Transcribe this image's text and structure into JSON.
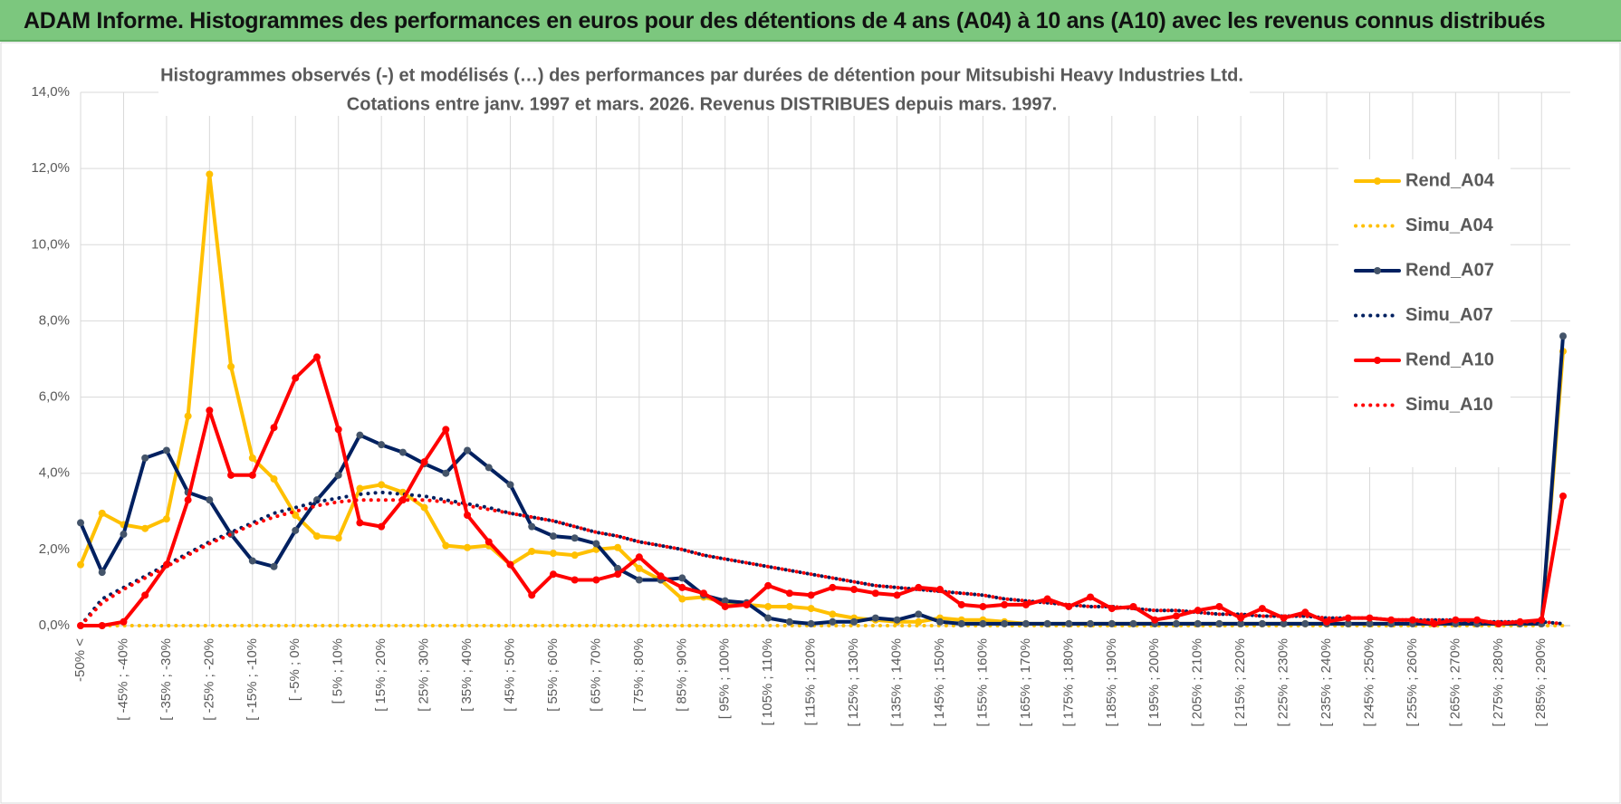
{
  "header": {
    "title": "ADAM Informe. Histogrammes des performances en euros pour des détentions de 4 ans (A04) à 10 ans (A10) avec les revenus connus distribués"
  },
  "chart_data": {
    "type": "line",
    "title": "Histogrammes observés (-) et modélisés (…) des performances par durées de détention pour Mitsubishi Heavy Industries Ltd.",
    "subtitle": "Cotations entre janv. 1997 et mars. 2026.  Revenus DISTRIBUES depuis mars. 1997.",
    "categories": [
      "-50% <",
      null,
      "[ -45% ; -40%",
      null,
      "[ -35% ; -30%",
      null,
      "[ -25% ; -20%",
      null,
      "[ -15% ; -10%",
      null,
      "[ -5% ; 0%",
      null,
      "[ 5% ; 10%",
      null,
      "[ 15% ; 20%",
      null,
      "[ 25% ; 30%",
      null,
      "[ 35% ; 40%",
      null,
      "[ 45% ; 50%",
      null,
      "[ 55% ; 60%",
      null,
      "[ 65% ; 70%",
      null,
      "[ 75% ; 80%",
      null,
      "[ 85% ; 90%",
      null,
      "[ 95% ; 100%",
      null,
      "[ 105% ; 110%",
      null,
      "[ 115% ; 120%",
      null,
      "[ 125% ; 130%",
      null,
      "[ 135% ; 140%",
      null,
      "[ 145% ; 150%",
      null,
      "[ 155% ; 160%",
      null,
      "[ 165% ; 170%",
      null,
      "[ 175% ; 180%",
      null,
      "[ 185% ; 190%",
      null,
      "[ 195% ; 200%",
      null,
      "[ 205% ; 210%",
      null,
      "[ 215% ; 220%",
      null,
      "[ 225% ; 230%",
      null,
      "[ 235% ; 240%",
      null,
      "[ 245% ; 250%",
      null,
      "[ 255% ; 260%",
      null,
      "[ 265% ; 270%",
      null,
      "[ 275% ; 280%",
      null,
      "[ 285% ; 290%",
      null
    ],
    "series": [
      {
        "name": "Rend_A04",
        "color": "#ffc000",
        "style": "solid",
        "markers": true,
        "values": [
          1.6,
          2.95,
          2.65,
          2.55,
          2.8,
          5.5,
          11.85,
          6.8,
          4.4,
          3.85,
          2.9,
          2.35,
          2.3,
          3.6,
          3.7,
          3.5,
          3.1,
          2.1,
          2.05,
          2.1,
          1.6,
          1.95,
          1.9,
          1.85,
          2.0,
          2.05,
          1.5,
          1.2,
          0.7,
          0.75,
          0.6,
          0.55,
          0.5,
          0.5,
          0.45,
          0.3,
          0.2,
          0.15,
          0.1,
          0.1,
          0.2,
          0.15,
          0.15,
          0.1,
          0.05,
          0.05,
          0.05,
          0.05,
          0.05,
          0.05,
          0.05,
          0.05,
          0.05,
          0.05,
          0.05,
          0.05,
          0.05,
          0.05,
          0.05,
          0.05,
          0.05,
          0.05,
          0.05,
          0.05,
          0.05,
          0.05,
          0.05,
          0.05,
          0.05,
          7.2
        ]
      },
      {
        "name": "Simu_A04",
        "color": "#ffc000",
        "style": "dotted",
        "markers": false,
        "values": [
          0,
          0,
          0,
          0,
          0,
          0,
          0,
          0,
          0,
          0,
          0,
          0,
          0,
          0,
          0,
          0,
          0,
          0,
          0,
          0,
          0,
          0,
          0,
          0,
          0,
          0,
          0,
          0,
          0,
          0,
          0,
          0,
          0,
          0,
          0,
          0,
          0,
          0,
          0,
          0,
          0,
          0,
          0,
          0,
          0,
          0,
          0,
          0,
          0,
          0,
          0,
          0,
          0,
          0,
          0,
          0,
          0,
          0,
          0,
          0,
          0,
          0,
          0,
          0,
          0,
          0,
          0,
          0,
          0,
          0
        ]
      },
      {
        "name": "Rend_A07",
        "color": "#002060",
        "style": "solid",
        "markers": true,
        "values": [
          2.7,
          1.4,
          2.4,
          4.4,
          4.6,
          3.5,
          3.3,
          2.4,
          1.7,
          1.55,
          2.5,
          3.3,
          3.95,
          5.0,
          4.75,
          4.55,
          4.25,
          4.0,
          4.6,
          4.15,
          3.7,
          2.6,
          2.35,
          2.3,
          2.15,
          1.5,
          1.2,
          1.2,
          1.25,
          0.8,
          0.65,
          0.6,
          0.2,
          0.1,
          0.05,
          0.1,
          0.1,
          0.2,
          0.15,
          0.3,
          0.1,
          0.05,
          0.05,
          0.05,
          0.05,
          0.05,
          0.05,
          0.05,
          0.05,
          0.05,
          0.05,
          0.05,
          0.05,
          0.05,
          0.05,
          0.05,
          0.05,
          0.05,
          0.05,
          0.05,
          0.05,
          0.05,
          0.05,
          0.05,
          0.05,
          0.05,
          0.05,
          0.05,
          0.05,
          7.6
        ]
      },
      {
        "name": "Simu_A07",
        "color": "#002060",
        "style": "dotted",
        "markers": false,
        "values": [
          0,
          0.7,
          1.0,
          1.3,
          1.6,
          1.9,
          2.2,
          2.45,
          2.7,
          2.95,
          3.1,
          3.25,
          3.35,
          3.45,
          3.5,
          3.45,
          3.4,
          3.3,
          3.2,
          3.1,
          2.95,
          2.85,
          2.75,
          2.6,
          2.45,
          2.35,
          2.2,
          2.1,
          2.0,
          1.85,
          1.75,
          1.65,
          1.55,
          1.45,
          1.35,
          1.25,
          1.15,
          1.05,
          1.0,
          0.95,
          0.9,
          0.85,
          0.8,
          0.7,
          0.65,
          0.6,
          0.55,
          0.5,
          0.5,
          0.45,
          0.4,
          0.4,
          0.35,
          0.3,
          0.3,
          0.25,
          0.25,
          0.25,
          0.2,
          0.2,
          0.2,
          0.15,
          0.15,
          0.15,
          0.15,
          0.1,
          0.1,
          0.1,
          0.1,
          0.05
        ]
      },
      {
        "name": "Rend_A10",
        "color": "#ff0000",
        "style": "solid",
        "markers": true,
        "values": [
          0,
          0,
          0.1,
          0.8,
          1.6,
          3.3,
          5.65,
          3.95,
          3.95,
          5.2,
          6.5,
          7.05,
          5.15,
          2.7,
          2.6,
          3.3,
          4.3,
          5.15,
          2.9,
          2.2,
          1.6,
          0.8,
          1.35,
          1.2,
          1.2,
          1.35,
          1.8,
          1.3,
          1.0,
          0.85,
          0.5,
          0.55,
          1.05,
          0.85,
          0.8,
          1.0,
          0.95,
          0.85,
          0.8,
          1.0,
          0.95,
          0.55,
          0.5,
          0.55,
          0.55,
          0.7,
          0.5,
          0.75,
          0.45,
          0.5,
          0.15,
          0.25,
          0.4,
          0.5,
          0.2,
          0.45,
          0.2,
          0.35,
          0.1,
          0.2,
          0.2,
          0.15,
          0.15,
          0.05,
          0.15,
          0.15,
          0.05,
          0.1,
          0.15,
          3.4
        ]
      },
      {
        "name": "Simu_A10",
        "color": "#ff0000",
        "style": "dotted",
        "markers": false,
        "values": [
          0,
          0.6,
          0.95,
          1.25,
          1.55,
          1.85,
          2.15,
          2.4,
          2.65,
          2.85,
          3.0,
          3.15,
          3.25,
          3.3,
          3.3,
          3.3,
          3.3,
          3.25,
          3.15,
          3.05,
          2.95,
          2.85,
          2.75,
          2.6,
          2.45,
          2.35,
          2.2,
          2.1,
          2.0,
          1.85,
          1.75,
          1.65,
          1.55,
          1.45,
          1.35,
          1.25,
          1.15,
          1.05,
          1.0,
          0.95,
          0.9,
          0.85,
          0.8,
          0.7,
          0.65,
          0.6,
          0.55,
          0.5,
          0.5,
          0.45,
          0.4,
          0.4,
          0.35,
          0.3,
          0.3,
          0.25,
          0.25,
          0.25,
          0.2,
          0.2,
          0.2,
          0.15,
          0.15,
          0.15,
          0.15,
          0.1,
          0.1,
          0.1,
          0.1,
          0.05
        ]
      }
    ],
    "ylim": [
      0,
      14
    ],
    "yticks": [
      {
        "value": 0,
        "label": "0,0%"
      },
      {
        "value": 2,
        "label": "2,0%"
      },
      {
        "value": 4,
        "label": "4,0%"
      },
      {
        "value": 6,
        "label": "6,0%"
      },
      {
        "value": 8,
        "label": "8,0%"
      },
      {
        "value": 10,
        "label": "10,0%"
      },
      {
        "value": 12,
        "label": "12,0%"
      },
      {
        "value": 14,
        "label": "14,0%"
      }
    ],
    "grid": true,
    "legend": "right"
  }
}
